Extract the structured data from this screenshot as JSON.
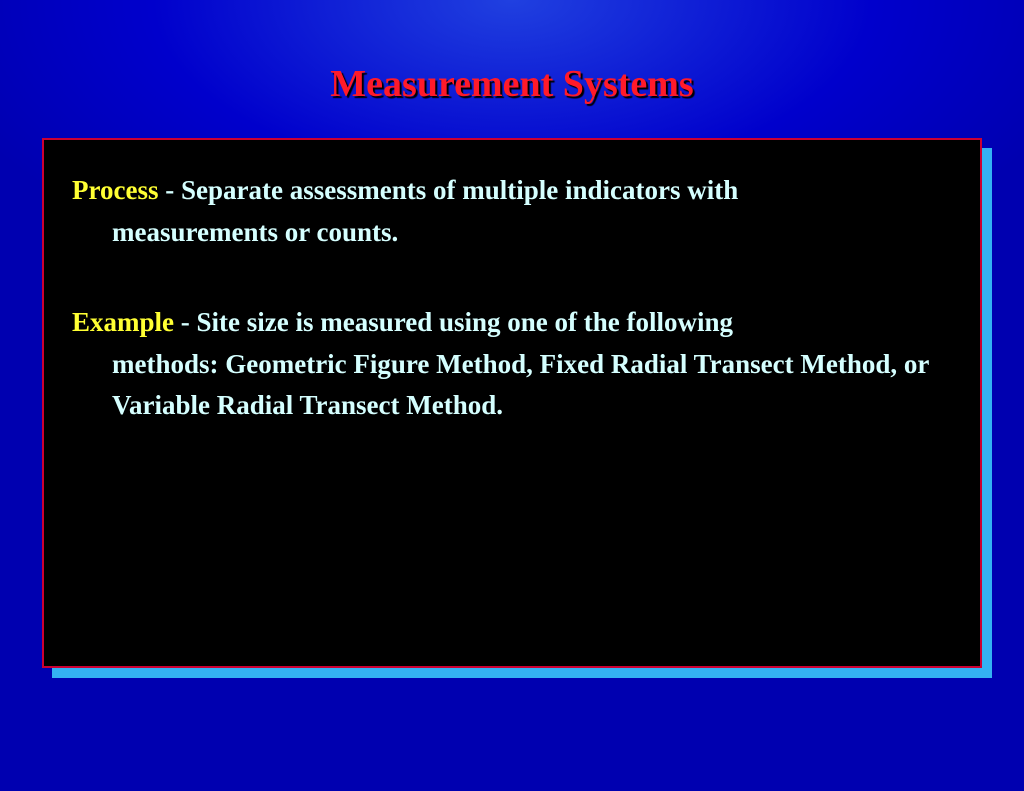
{
  "slide": {
    "title": "Measurement Systems",
    "title_color": "#ff1a2a",
    "title_shadow": "#000000",
    "title_fontsize": 38,
    "background_outer": "#0000cc",
    "background_gradient_inner": "#2040e0",
    "content_box": {
      "background": "#000000",
      "border_color": "#cc0033",
      "shadow_color": "#3dd0ff",
      "paragraphs": [
        {
          "label": "Process",
          "label_color": "#ffff33",
          "separator": " - ",
          "first_line": "Separate assessments of multiple indicators with",
          "continuation": "measurements or counts.",
          "body_color": "#d5ffff",
          "fontsize": 27
        },
        {
          "label": "Example",
          "label_color": "#ffff33",
          "separator": " - ",
          "first_line": "Site size is measured using one of the following",
          "continuation": "methods:  Geometric Figure Method, Fixed Radial Transect Method, or Variable Radial Transect Method.",
          "body_color": "#d5ffff",
          "fontsize": 27
        }
      ]
    }
  }
}
